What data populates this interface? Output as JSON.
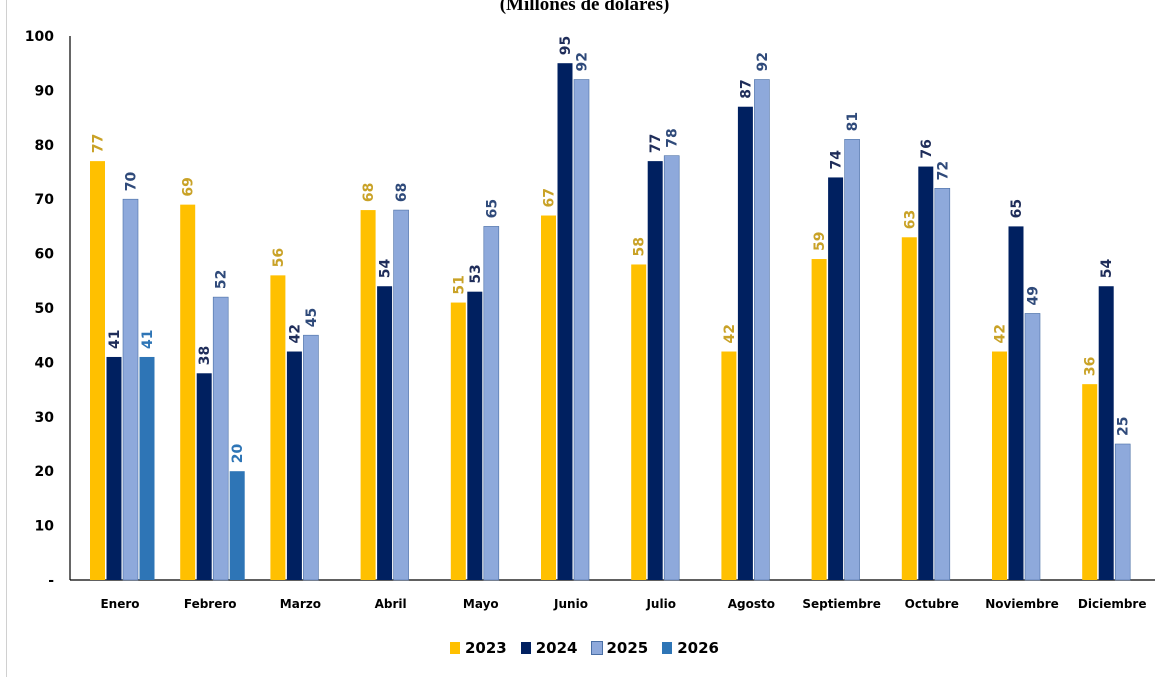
{
  "chart_data": {
    "type": "bar",
    "title": "(Millones de dólares)",
    "categories": [
      "Enero",
      "Febrero",
      "Marzo",
      "Abril",
      "Mayo",
      "Junio",
      "Julio",
      "Agosto",
      "Septiembre",
      "Octubre",
      "Noviembre",
      "Diciembre"
    ],
    "series": [
      {
        "name": "2023",
        "color": "#FFC000",
        "label_color": "#C9A227",
        "values": [
          77,
          69,
          56,
          68,
          51,
          67,
          58,
          42,
          59,
          63,
          42,
          36
        ]
      },
      {
        "name": "2024",
        "color": "#002060",
        "label_color": "#1F2D5A",
        "values": [
          41,
          38,
          42,
          54,
          53,
          95,
          77,
          87,
          74,
          76,
          65,
          54
        ]
      },
      {
        "name": "2025",
        "color": "#8EA9DB",
        "label_color": "#2F4A7A",
        "values": [
          70,
          52,
          45,
          68,
          65,
          92,
          78,
          92,
          81,
          72,
          49,
          25
        ]
      },
      {
        "name": "2026",
        "color": "#2E75B6",
        "label_color": "#2E75B6",
        "values": [
          41,
          20,
          null,
          null,
          null,
          null,
          null,
          null,
          null,
          null,
          null,
          null
        ]
      }
    ],
    "ylim": [
      0,
      100
    ],
    "yticks": [
      "-",
      "10",
      "20",
      "30",
      "40",
      "50",
      "60",
      "70",
      "80",
      "90",
      "100"
    ],
    "xlabel": "",
    "ylabel": "",
    "grid": false,
    "legend_position": "bottom"
  }
}
